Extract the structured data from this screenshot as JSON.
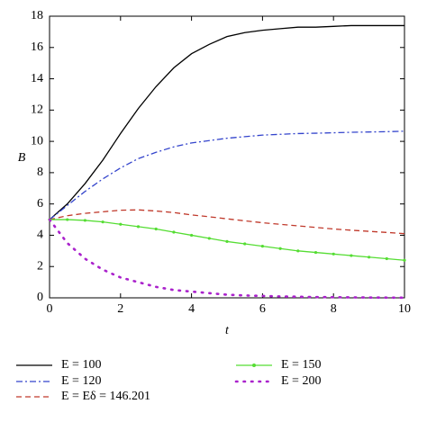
{
  "chart_data": {
    "type": "line",
    "xlabel": "t",
    "ylabel": "B",
    "x": [
      0,
      0.5,
      1,
      1.5,
      2,
      2.5,
      3,
      3.5,
      4,
      4.5,
      5,
      5.5,
      6,
      6.5,
      7,
      7.5,
      8,
      8.5,
      9,
      9.5,
      10
    ],
    "series": [
      {
        "name": "E = 100",
        "color": "#000000",
        "style": "solid",
        "values": [
          5,
          6.0,
          7.3,
          8.8,
          10.5,
          12.1,
          13.5,
          14.7,
          15.6,
          16.2,
          16.7,
          16.95,
          17.1,
          17.2,
          17.3,
          17.3,
          17.35,
          17.4,
          17.4,
          17.4,
          17.4
        ]
      },
      {
        "name": "E = 120",
        "color": "#3344cc",
        "style": "dashdot",
        "values": [
          5,
          5.9,
          6.8,
          7.6,
          8.3,
          8.9,
          9.3,
          9.65,
          9.9,
          10.05,
          10.2,
          10.3,
          10.4,
          10.45,
          10.5,
          10.52,
          10.55,
          10.58,
          10.6,
          10.62,
          10.65
        ]
      },
      {
        "name": "E = Eδ = 146.201",
        "color": "#c0392b",
        "style": "dashed",
        "values": [
          5,
          5.25,
          5.4,
          5.5,
          5.6,
          5.62,
          5.55,
          5.45,
          5.3,
          5.18,
          5.05,
          4.92,
          4.8,
          4.7,
          4.6,
          4.5,
          4.4,
          4.32,
          4.25,
          4.18,
          4.1
        ]
      },
      {
        "name": "E = 150",
        "color": "#55dd33",
        "style": "marked",
        "values": [
          5,
          5,
          4.95,
          4.85,
          4.7,
          4.55,
          4.4,
          4.2,
          4.0,
          3.8,
          3.6,
          3.45,
          3.3,
          3.15,
          3.0,
          2.9,
          2.8,
          2.7,
          2.6,
          2.5,
          2.4
        ]
      },
      {
        "name": "E = 200",
        "color": "#aa22cc",
        "style": "dotted",
        "values": [
          5,
          3.5,
          2.5,
          1.8,
          1.3,
          1.0,
          0.7,
          0.5,
          0.4,
          0.3,
          0.2,
          0.15,
          0.12,
          0.09,
          0.07,
          0.05,
          0.04,
          0.03,
          0.02,
          0.015,
          0.01
        ]
      }
    ],
    "xlim": [
      0,
      10
    ],
    "xticks": [
      0,
      2,
      4,
      6,
      8,
      10
    ],
    "ylim": [
      0,
      18
    ],
    "yticks": [
      0,
      2,
      4,
      6,
      8,
      10,
      12,
      14,
      16,
      18
    ]
  }
}
